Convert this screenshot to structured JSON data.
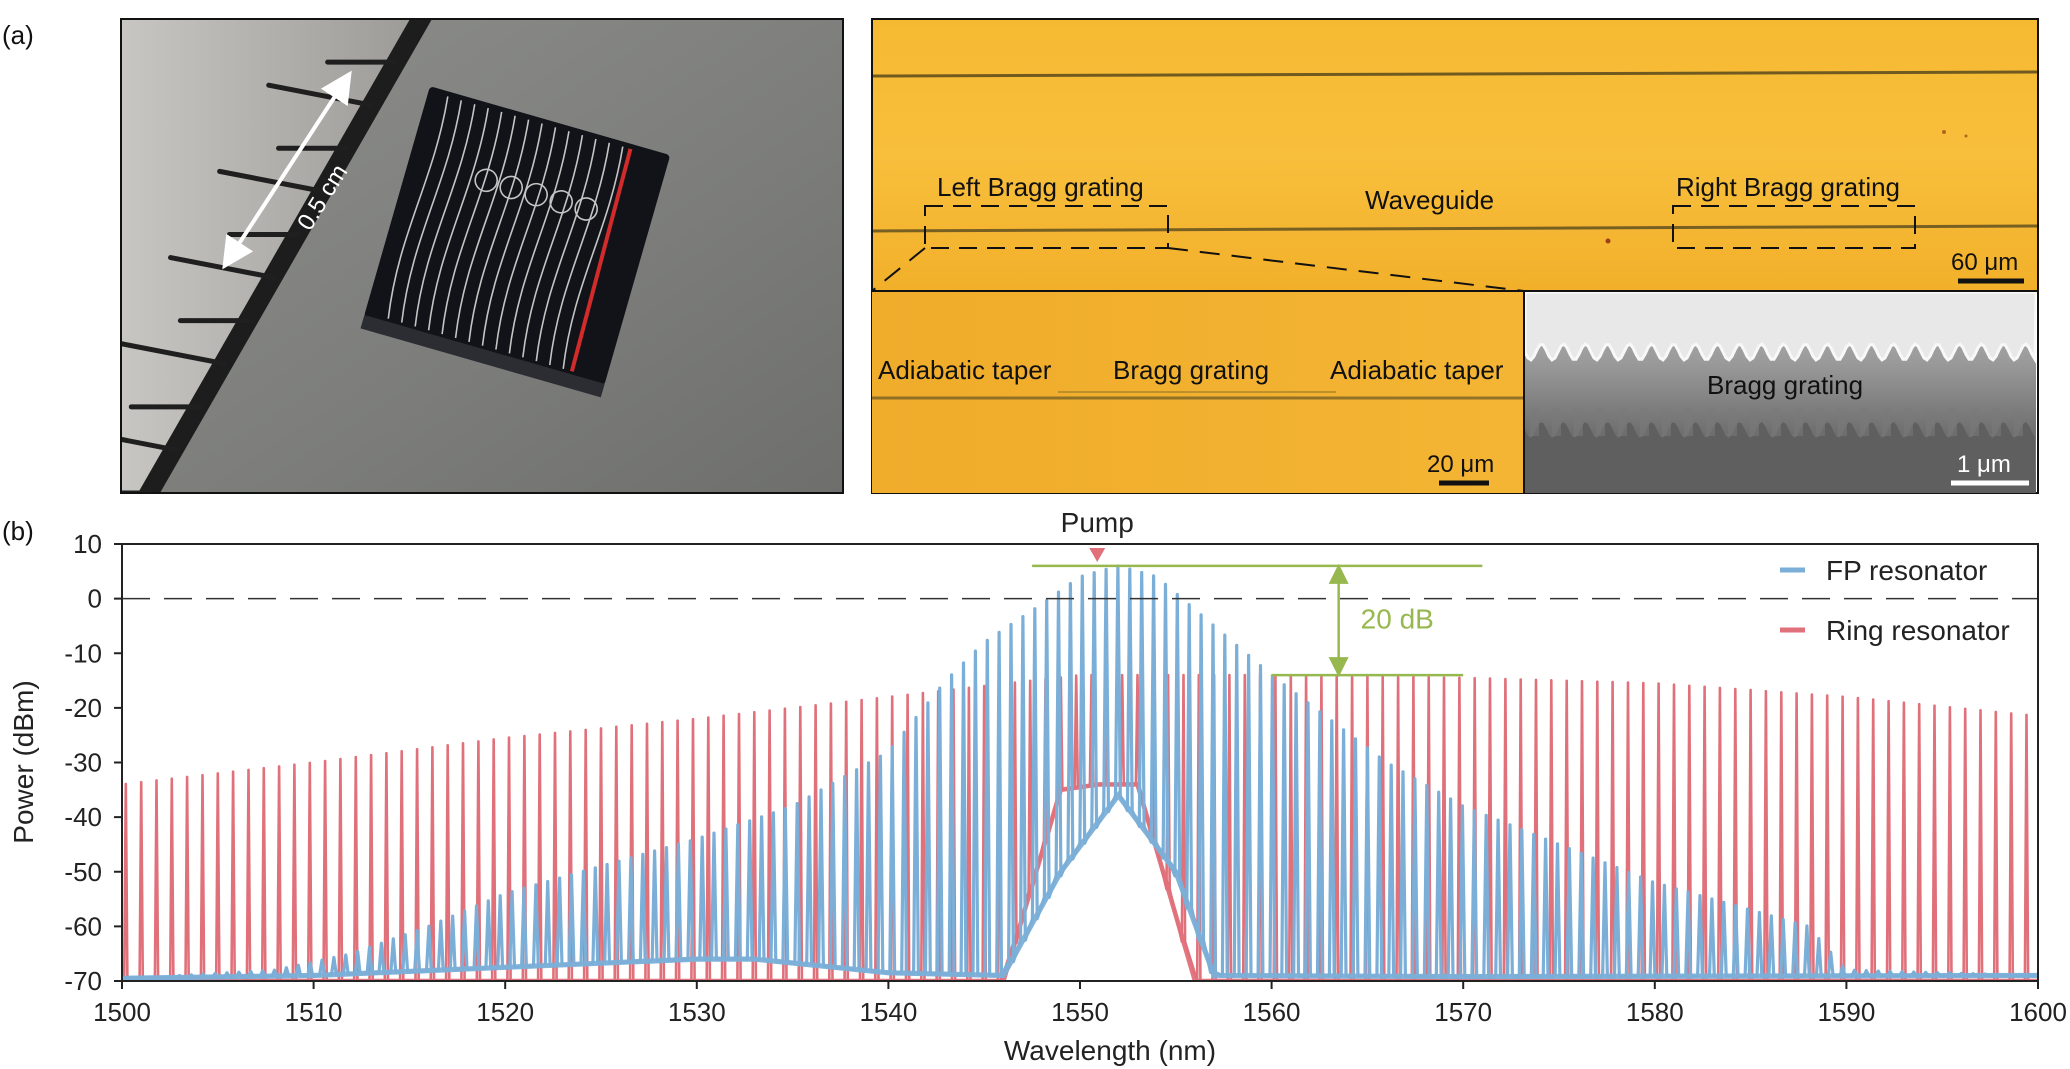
{
  "panel_a": {
    "label": "(a)",
    "photo": {
      "scale_text": "0.5 cm"
    },
    "microscope": {
      "left_bragg_label": "Left Bragg grating",
      "waveguide_label": "Waveguide",
      "right_bragg_label": "Right Bragg grating",
      "scale_text": "60 μm"
    },
    "zoom": {
      "taper_left_label": "Adiabatic taper",
      "bragg_label": "Bragg grating",
      "taper_right_label": "Adiabatic taper",
      "scale_text": "20 μm"
    },
    "sem": {
      "bragg_label": "Bragg grating",
      "scale_text": "1 μm"
    }
  },
  "panel_b": {
    "label": "(b)"
  },
  "colors": {
    "fp": "#7bafd8",
    "ring": "#e0707a",
    "annotation": "#96b84e",
    "pump_marker": "#e0707a"
  },
  "chart_data": {
    "type": "line",
    "xlabel": "Wavelength (nm)",
    "ylabel": "Power (dBm)",
    "xlim": [
      1500,
      1600
    ],
    "ylim": [
      -70,
      10
    ],
    "xticks": [
      "1500",
      "1510",
      "1520",
      "1530",
      "1540",
      "1550",
      "1560",
      "1570",
      "1580",
      "1590",
      "1600"
    ],
    "yticks": [
      "10",
      "0",
      "-10",
      "-20",
      "-30",
      "-40",
      "-50",
      "-60",
      "-70"
    ],
    "grid": false,
    "reference_line": {
      "y": 0,
      "style": "dashed"
    },
    "legend_position": "top-right",
    "annotations": {
      "pump_label": "Pump",
      "pump_x": 1550.9,
      "delta_label": "20 dB",
      "delta_top_y": 6,
      "delta_bottom_y": -14,
      "delta_x": 1563.5
    },
    "series": [
      {
        "name": "FP resonator",
        "line_type": "comb",
        "comb_x_start": 1503.0,
        "comb_spacing_nm": 0.62,
        "floor_y": -69.5,
        "envelope": [
          [
            1503,
            -69
          ],
          [
            1508,
            -68
          ],
          [
            1512,
            -65
          ],
          [
            1516,
            -60
          ],
          [
            1520,
            -54
          ],
          [
            1525,
            -49
          ],
          [
            1530,
            -44
          ],
          [
            1535,
            -38
          ],
          [
            1540,
            -28
          ],
          [
            1543,
            -15
          ],
          [
            1545,
            -8
          ],
          [
            1548,
            -1
          ],
          [
            1550,
            4
          ],
          [
            1552,
            6
          ],
          [
            1554,
            4
          ],
          [
            1556,
            -2
          ],
          [
            1558,
            -8
          ],
          [
            1560,
            -14
          ],
          [
            1563,
            -22
          ],
          [
            1566,
            -30
          ],
          [
            1570,
            -38
          ],
          [
            1575,
            -45
          ],
          [
            1580,
            -52
          ],
          [
            1585,
            -57
          ],
          [
            1588,
            -60
          ],
          [
            1590,
            -68
          ],
          [
            1600,
            -69
          ]
        ],
        "floor_trace": [
          [
            1500,
            -69.5
          ],
          [
            1510,
            -69
          ],
          [
            1520,
            -67.5
          ],
          [
            1530,
            -66
          ],
          [
            1533,
            -66
          ],
          [
            1540,
            -68.5
          ],
          [
            1546,
            -69
          ],
          [
            1549,
            -50
          ],
          [
            1552,
            -36
          ],
          [
            1555,
            -50
          ],
          [
            1557,
            -69
          ],
          [
            1570,
            -69.2
          ],
          [
            1600,
            -69
          ]
        ]
      },
      {
        "name": "Ring resonator",
        "line_type": "comb",
        "comb_x_start": 1500.2,
        "comb_spacing_nm": 0.8,
        "floor_y": -70,
        "envelope": [
          [
            1500,
            -34
          ],
          [
            1510,
            -30
          ],
          [
            1520,
            -25.5
          ],
          [
            1530,
            -22
          ],
          [
            1540,
            -18
          ],
          [
            1545,
            -16
          ],
          [
            1550,
            -14
          ],
          [
            1555,
            -14
          ],
          [
            1560,
            -14
          ],
          [
            1570,
            -14.5
          ],
          [
            1580,
            -15.5
          ],
          [
            1590,
            -18
          ],
          [
            1600,
            -21.5
          ]
        ],
        "floor_trace": [
          [
            1500,
            -70
          ],
          [
            1546,
            -70
          ],
          [
            1549,
            -35
          ],
          [
            1551,
            -34
          ],
          [
            1553,
            -34
          ],
          [
            1556,
            -70
          ],
          [
            1600,
            -70
          ]
        ]
      }
    ]
  }
}
